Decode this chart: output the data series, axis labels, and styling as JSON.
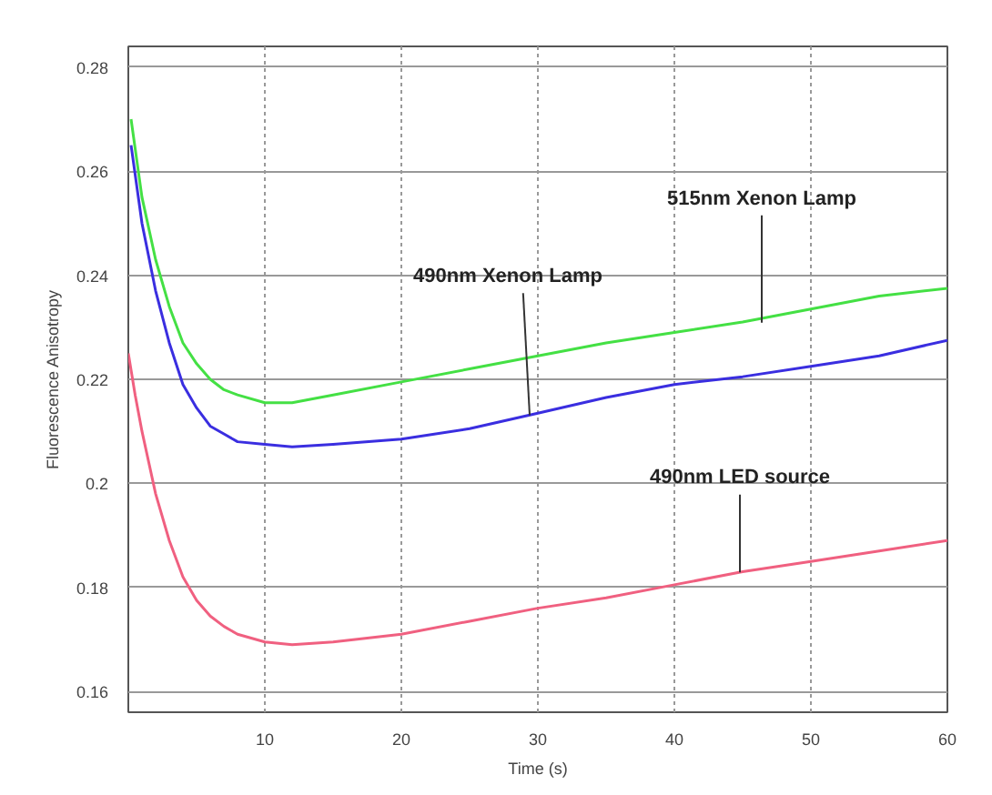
{
  "chart_data": {
    "type": "line",
    "xlabel": "Time (s)",
    "ylabel": "Fluorescence Anisotropy",
    "xlim": [
      0,
      60
    ],
    "ylim": [
      0.156,
      0.284
    ],
    "xticks": [
      10,
      20,
      30,
      40,
      50,
      60
    ],
    "yticks": [
      0.16,
      0.18,
      0.2,
      0.22,
      0.24,
      0.26,
      0.28
    ],
    "grid": true,
    "line_style": "solid",
    "series": [
      {
        "color": "#44e044",
        "x": [
          0.2,
          1,
          2,
          3,
          4,
          5,
          6,
          7,
          8,
          10,
          12,
          15,
          20,
          25,
          30,
          35,
          40,
          45,
          50,
          55,
          60
        ],
        "values": [
          0.27,
          0.255,
          0.243,
          0.234,
          0.227,
          0.223,
          0.22,
          0.218,
          0.217,
          0.2155,
          0.2155,
          0.217,
          0.2195,
          0.222,
          0.2245,
          0.227,
          0.229,
          0.231,
          0.2335,
          0.236,
          0.2375
        ]
      },
      {
        "color": "#3a2ee0",
        "x": [
          0.2,
          1,
          2,
          3,
          4,
          5,
          6,
          7,
          8,
          10,
          12,
          15,
          20,
          25,
          30,
          35,
          40,
          45,
          50,
          55,
          60
        ],
        "values": [
          0.265,
          0.25,
          0.237,
          0.227,
          0.219,
          0.2145,
          0.211,
          0.2095,
          0.208,
          0.2075,
          0.207,
          0.2075,
          0.2085,
          0.2105,
          0.2135,
          0.2165,
          0.219,
          0.2205,
          0.2225,
          0.2245,
          0.2275
        ]
      },
      {
        "color": "#f06080",
        "x": [
          0,
          0.5,
          1,
          2,
          3,
          4,
          5,
          6,
          7,
          8,
          10,
          12,
          15,
          20,
          25,
          30,
          35,
          40,
          45,
          50,
          55,
          60
        ],
        "values": [
          0.225,
          0.217,
          0.21,
          0.198,
          0.189,
          0.182,
          0.1775,
          0.1745,
          0.1725,
          0.171,
          0.1695,
          0.169,
          0.1695,
          0.171,
          0.1735,
          0.176,
          0.178,
          0.1805,
          0.183,
          0.185,
          0.187,
          0.189
        ]
      }
    ],
    "annotations": [
      {
        "text": "515nm Xenon Lamp",
        "x": 46.4,
        "y": 0.2309
      },
      {
        "text": "490nm Xenon Lamp",
        "x": 29.4,
        "y": 0.2131
      },
      {
        "text": "490nm LED source",
        "x": 44.8,
        "y": 0.1829
      }
    ]
  }
}
